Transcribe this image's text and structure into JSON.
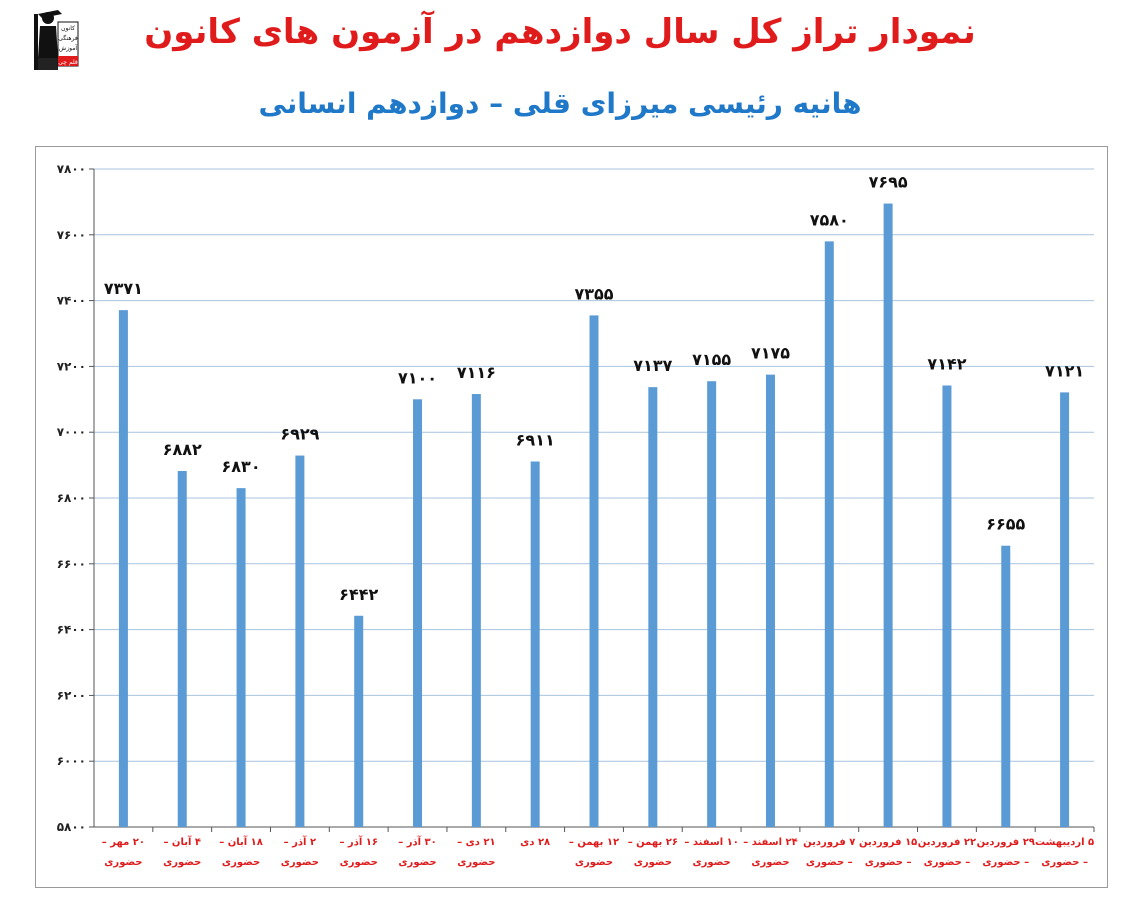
{
  "header": {
    "title": "نمودار تراز کل سال دوازدهم در آزمون های کانون",
    "subtitle": "هانیه رئیسی میرزای قلی – دوازدهم انسانی"
  },
  "logo": {
    "line1": "کانون",
    "line2": "فرهنگی",
    "line3": "آموزش",
    "line4": "قلم چی"
  },
  "colors": {
    "bar": "#5b9bd5",
    "title": "#e01b1b",
    "subtitle": "#1f78c8",
    "grid": "#a9c4df",
    "category": "#e01b1b"
  },
  "chart_data": {
    "type": "bar",
    "title": "",
    "xlabel": "",
    "ylabel": "",
    "ylim": [
      5800,
      7800
    ],
    "yticks": [
      5800,
      6000,
      6200,
      6400,
      6600,
      6800,
      7000,
      7200,
      7400,
      7600,
      7800
    ],
    "ytick_labels": [
      "۵۸۰۰",
      "۶۰۰۰",
      "۶۲۰۰",
      "۶۴۰۰",
      "۶۶۰۰",
      "۶۸۰۰",
      "۷۰۰۰",
      "۷۲۰۰",
      "۷۴۰۰",
      "۷۶۰۰",
      "۷۸۰۰"
    ],
    "grid": true,
    "categories": [
      [
        "۲۰ مهر –",
        "حضوری"
      ],
      [
        "۴ آبان –",
        "حضوری"
      ],
      [
        "۱۸ آبان –",
        "حضوری"
      ],
      [
        "۲ آذر –",
        "حضوری"
      ],
      [
        "۱۶ آذر –",
        "حضوری"
      ],
      [
        "۳۰ آذر –",
        "حضوری"
      ],
      [
        "۲۱ دی –",
        "حضوری"
      ],
      [
        "۲۸ دی",
        ""
      ],
      [
        "۱۲ بهمن –",
        "حضوری"
      ],
      [
        "۲۶ بهمن –",
        "حضوری"
      ],
      [
        "۱۰ اسفند –",
        "حضوری"
      ],
      [
        "۲۴ اسفند –",
        "حضوری"
      ],
      [
        "۷ فروردین",
        "– حضوری"
      ],
      [
        "۱۵ فروردین",
        "– حضوری"
      ],
      [
        "۲۲ فروردین",
        "– حضوری"
      ],
      [
        "۲۹ فروردین",
        "– حضوری"
      ],
      [
        "۵ اردیبهشت",
        "– حضوری"
      ]
    ],
    "values": [
      7371,
      6882,
      6830,
      6929,
      6442,
      7100,
      7116,
      6911,
      7355,
      7137,
      7155,
      7175,
      7580,
      7695,
      7142,
      6655,
      7121
    ],
    "value_labels": [
      "۷۳۷۱",
      "۶۸۸۲",
      "۶۸۳۰",
      "۶۹۲۹",
      "۶۴۴۲",
      "۷۱۰۰",
      "۷۱۱۶",
      "۶۹۱۱",
      "۷۳۵۵",
      "۷۱۳۷",
      "۷۱۵۵",
      "۷۱۷۵",
      "۷۵۸۰",
      "۷۶۹۵",
      "۷۱۴۲",
      "۶۶۵۵",
      "۷۱۲۱"
    ]
  }
}
